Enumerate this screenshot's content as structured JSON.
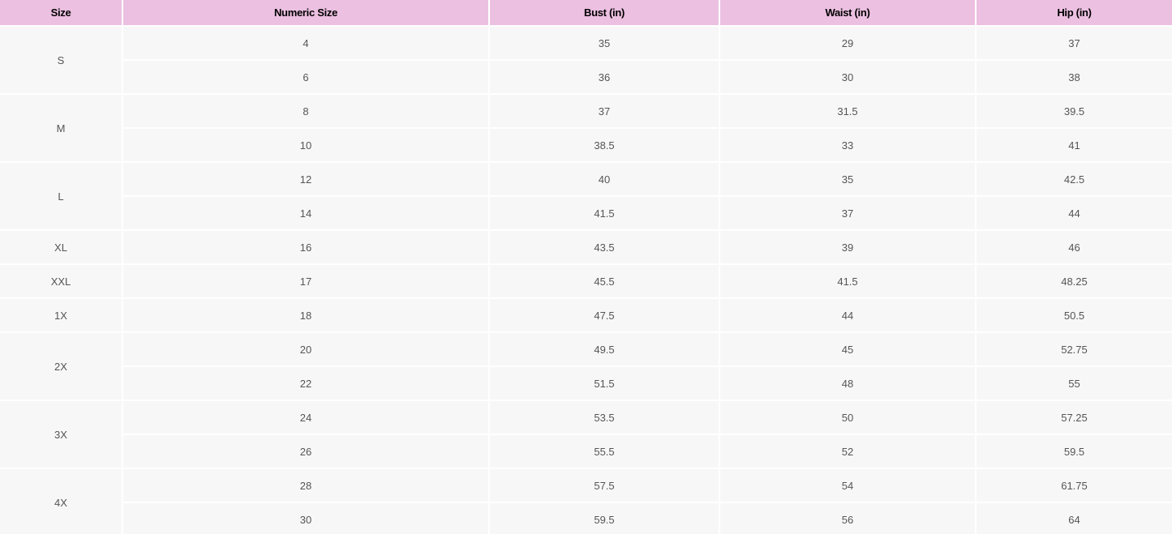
{
  "table": {
    "headers": [
      "Size",
      "Numeric Size",
      "Bust (in)",
      "Waist (in)",
      "Hip (in)"
    ],
    "colors": {
      "header_bg": "#ecc0e1",
      "cell_bg": "#f7f7f7"
    },
    "groups": [
      {
        "size": "S",
        "rows": [
          [
            "4",
            "35",
            "29",
            "37"
          ],
          [
            "6",
            "36",
            "30",
            "38"
          ]
        ]
      },
      {
        "size": "M",
        "rows": [
          [
            "8",
            "37",
            "31.5",
            "39.5"
          ],
          [
            "10",
            "38.5",
            "33",
            "41"
          ]
        ]
      },
      {
        "size": "L",
        "rows": [
          [
            "12",
            "40",
            "35",
            "42.5"
          ],
          [
            "14",
            "41.5",
            "37",
            "44"
          ]
        ]
      },
      {
        "size": "XL",
        "rows": [
          [
            "16",
            "43.5",
            "39",
            "46"
          ]
        ]
      },
      {
        "size": "XXL",
        "rows": [
          [
            "17",
            "45.5",
            "41.5",
            "48.25"
          ]
        ]
      },
      {
        "size": "1X",
        "rows": [
          [
            "18",
            "47.5",
            "44",
            "50.5"
          ]
        ]
      },
      {
        "size": "2X",
        "rows": [
          [
            "20",
            "49.5",
            "45",
            "52.75"
          ],
          [
            "22",
            "51.5",
            "48",
            "55"
          ]
        ]
      },
      {
        "size": "3X",
        "rows": [
          [
            "24",
            "53.5",
            "50",
            "57.25"
          ],
          [
            "26",
            "55.5",
            "52",
            "59.5"
          ]
        ]
      },
      {
        "size": "4X",
        "rows": [
          [
            "28",
            "57.5",
            "54",
            "61.75"
          ],
          [
            "30",
            "59.5",
            "56",
            "64"
          ]
        ]
      }
    ]
  }
}
